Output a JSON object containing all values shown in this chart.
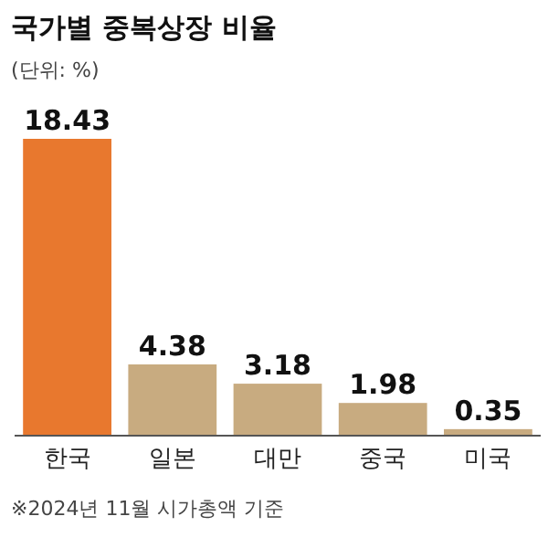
{
  "chart_data": {
    "type": "bar",
    "title": "국가별 중복상장 비율",
    "subtitle": "(단위: %)",
    "categories": [
      "한국",
      "일본",
      "대만",
      "중국",
      "미국"
    ],
    "values": [
      18.43,
      4.38,
      3.18,
      1.98,
      0.35
    ],
    "colors": [
      "#e8782e",
      "#c8ab80",
      "#c8ab80",
      "#c8ab80",
      "#c8ab80"
    ],
    "data_labels": true,
    "annotations": [
      "※2024년 11월 시가총액 기준"
    ]
  }
}
